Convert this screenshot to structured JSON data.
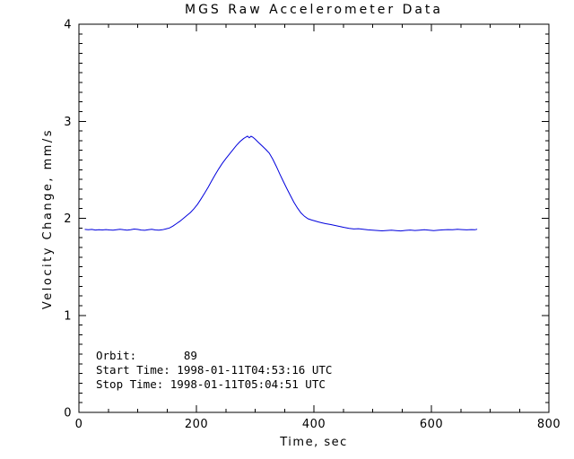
{
  "chart_data": {
    "type": "line",
    "title": "MGS Raw Accelerometer Data",
    "xlabel": "Time, sec",
    "ylabel": "Velocity Change, mm/s",
    "xlim": [
      0,
      800
    ],
    "ylim": [
      0,
      4
    ],
    "x_major_ticks": [
      0,
      200,
      400,
      600,
      800
    ],
    "x_minor_step": 50,
    "y_major_ticks": [
      0,
      1,
      2,
      3,
      4
    ],
    "y_minor_step": 0.1,
    "grid": false,
    "legend": null,
    "line_color": "#0000dd",
    "axis_color": "#000000",
    "background_color": "#ffffff",
    "annotations": [
      "Orbit:       89",
      "Start Time: 1998-01-11T04:53:16 UTC",
      "Stop Time: 1998-01-11T05:04:51 UTC"
    ],
    "annotation_values": {
      "orbit": "89",
      "start_time": "1998-01-11T04:53:16 UTC",
      "stop_time": "1998-01-11T05:04:51 UTC"
    },
    "series": [
      {
        "name": "velocity change",
        "points": [
          [
            10,
            1.885
          ],
          [
            16,
            1.882
          ],
          [
            22,
            1.885
          ],
          [
            28,
            1.879
          ],
          [
            34,
            1.883
          ],
          [
            40,
            1.88
          ],
          [
            46,
            1.884
          ],
          [
            52,
            1.88
          ],
          [
            58,
            1.877
          ],
          [
            64,
            1.883
          ],
          [
            70,
            1.887
          ],
          [
            76,
            1.882
          ],
          [
            82,
            1.878
          ],
          [
            88,
            1.883
          ],
          [
            94,
            1.889
          ],
          [
            100,
            1.885
          ],
          [
            106,
            1.879
          ],
          [
            112,
            1.876
          ],
          [
            118,
            1.882
          ],
          [
            124,
            1.886
          ],
          [
            130,
            1.88
          ],
          [
            136,
            1.877
          ],
          [
            142,
            1.882
          ],
          [
            148,
            1.89
          ],
          [
            154,
            1.9
          ],
          [
            160,
            1.92
          ],
          [
            166,
            1.945
          ],
          [
            172,
            1.97
          ],
          [
            178,
            2.0
          ],
          [
            184,
            2.03
          ],
          [
            190,
            2.06
          ],
          [
            196,
            2.1
          ],
          [
            202,
            2.145
          ],
          [
            208,
            2.2
          ],
          [
            214,
            2.26
          ],
          [
            220,
            2.32
          ],
          [
            226,
            2.385
          ],
          [
            232,
            2.45
          ],
          [
            238,
            2.51
          ],
          [
            244,
            2.565
          ],
          [
            250,
            2.615
          ],
          [
            256,
            2.66
          ],
          [
            262,
            2.705
          ],
          [
            268,
            2.75
          ],
          [
            274,
            2.79
          ],
          [
            280,
            2.82
          ],
          [
            284,
            2.836
          ],
          [
            287,
            2.846
          ],
          [
            290,
            2.83
          ],
          [
            293,
            2.845
          ],
          [
            296,
            2.836
          ],
          [
            300,
            2.815
          ],
          [
            306,
            2.78
          ],
          [
            312,
            2.745
          ],
          [
            318,
            2.71
          ],
          [
            324,
            2.672
          ],
          [
            330,
            2.61
          ],
          [
            336,
            2.535
          ],
          [
            342,
            2.455
          ],
          [
            348,
            2.38
          ],
          [
            354,
            2.305
          ],
          [
            360,
            2.235
          ],
          [
            366,
            2.165
          ],
          [
            372,
            2.105
          ],
          [
            378,
            2.055
          ],
          [
            384,
            2.02
          ],
          [
            390,
            1.995
          ],
          [
            396,
            1.982
          ],
          [
            402,
            1.972
          ],
          [
            408,
            1.962
          ],
          [
            414,
            1.953
          ],
          [
            420,
            1.945
          ],
          [
            428,
            1.936
          ],
          [
            436,
            1.926
          ],
          [
            444,
            1.916
          ],
          [
            452,
            1.905
          ],
          [
            460,
            1.896
          ],
          [
            468,
            1.89
          ],
          [
            476,
            1.893
          ],
          [
            484,
            1.887
          ],
          [
            492,
            1.881
          ],
          [
            500,
            1.877
          ],
          [
            508,
            1.874
          ],
          [
            516,
            1.871
          ],
          [
            524,
            1.874
          ],
          [
            532,
            1.877
          ],
          [
            540,
            1.873
          ],
          [
            548,
            1.87
          ],
          [
            556,
            1.875
          ],
          [
            564,
            1.879
          ],
          [
            572,
            1.874
          ],
          [
            580,
            1.878
          ],
          [
            588,
            1.882
          ],
          [
            596,
            1.877
          ],
          [
            604,
            1.873
          ],
          [
            612,
            1.877
          ],
          [
            620,
            1.881
          ],
          [
            628,
            1.884
          ],
          [
            636,
            1.882
          ],
          [
            644,
            1.886
          ],
          [
            652,
            1.884
          ],
          [
            660,
            1.881
          ],
          [
            668,
            1.884
          ],
          [
            674,
            1.882
          ],
          [
            678,
            1.887
          ]
        ]
      }
    ]
  }
}
